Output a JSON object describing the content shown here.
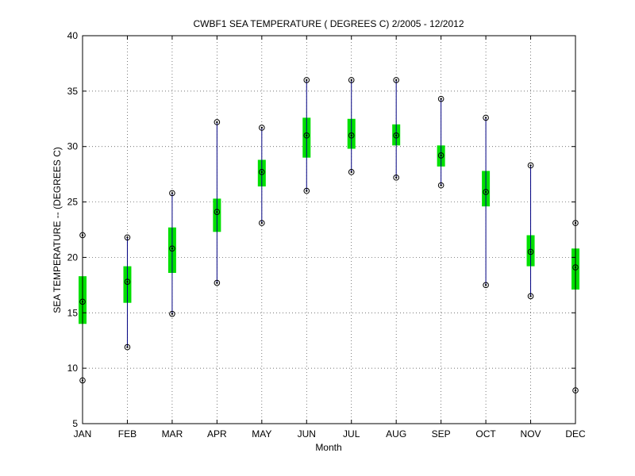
{
  "chart_data": {
    "type": "box",
    "title": "CWBF1  SEA TEMPERATURE ( DEGREES C) 2/2005 - 12/2012",
    "xlabel": "Month",
    "ylabel": "SEA TEMPERATURE -- (DEGREES C)",
    "ylim": [
      5,
      40
    ],
    "yticks": [
      5,
      10,
      15,
      20,
      25,
      30,
      35,
      40
    ],
    "grid": true,
    "categories": [
      "JAN",
      "FEB",
      "MAR",
      "APR",
      "MAY",
      "JUN",
      "JUL",
      "AUG",
      "SEP",
      "OCT",
      "NOV",
      "DEC"
    ],
    "min": [
      8.9,
      11.9,
      14.9,
      17.7,
      23.1,
      26.0,
      27.7,
      27.2,
      26.5,
      17.5,
      16.5,
      8.0
    ],
    "q1": [
      14.0,
      15.9,
      18.6,
      22.3,
      26.4,
      29.0,
      29.8,
      30.1,
      28.2,
      24.6,
      19.2,
      17.1
    ],
    "median": [
      16.0,
      17.8,
      20.8,
      24.1,
      27.7,
      31.0,
      31.0,
      31.0,
      29.2,
      25.9,
      20.5,
      19.1
    ],
    "q3": [
      18.3,
      19.2,
      22.7,
      25.3,
      28.8,
      32.6,
      32.5,
      32.0,
      30.1,
      27.8,
      22.0,
      20.8
    ],
    "max": [
      22.0,
      21.8,
      25.8,
      32.2,
      31.7,
      36.0,
      36.0,
      36.0,
      34.3,
      32.6,
      28.3,
      23.1
    ],
    "colors": {
      "box": "#00e000",
      "whisker": "#000080",
      "marker": "#000000",
      "grid": "#444444"
    }
  }
}
